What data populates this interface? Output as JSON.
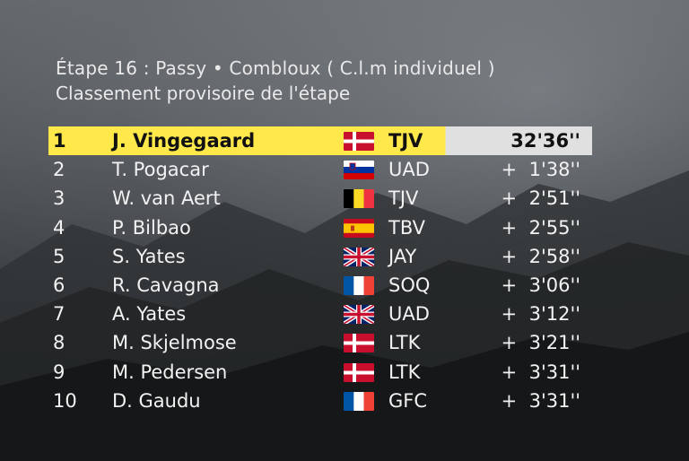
{
  "header": {
    "line1": "Étape 16 : Passy • Combloux ( C.l.m individuel )",
    "line2": "Classement provisoire de l'étape"
  },
  "rows": [
    {
      "pos": "1",
      "name": "J. Vingegaard",
      "flag": "denmark",
      "team": "TJV",
      "time": "32'36''"
    },
    {
      "pos": "2",
      "name": "T. Pogacar",
      "flag": "slovenia",
      "team": "UAD",
      "time": "+  1'38''"
    },
    {
      "pos": "3",
      "name": "W. van Aert",
      "flag": "belgium",
      "team": "TJV",
      "time": "+  2'51''"
    },
    {
      "pos": "4",
      "name": "P. Bilbao",
      "flag": "spain",
      "team": "TBV",
      "time": "+  2'55''"
    },
    {
      "pos": "5",
      "name": "S. Yates",
      "flag": "uk",
      "team": "JAY",
      "time": "+  2'58''"
    },
    {
      "pos": "6",
      "name": "R. Cavagna",
      "flag": "france",
      "team": "SOQ",
      "time": "+  3'06''"
    },
    {
      "pos": "7",
      "name": "A. Yates",
      "flag": "uk",
      "team": "UAD",
      "time": "+  3'12''"
    },
    {
      "pos": "8",
      "name": "M. Skjelmose",
      "flag": "denmark",
      "team": "LTK",
      "time": "+  3'21''"
    },
    {
      "pos": "9",
      "name": "M. Pedersen",
      "flag": "denmark",
      "team": "LTK",
      "time": "+  3'31''"
    },
    {
      "pos": "10",
      "name": "D. Gaudu",
      "flag": "france",
      "team": "GFC",
      "time": "+  3'31''"
    }
  ],
  "colors": {
    "leader_highlight": "#ffe84a",
    "leader_time_bg": "#e0e0e0",
    "text": "#f2f2f2"
  }
}
